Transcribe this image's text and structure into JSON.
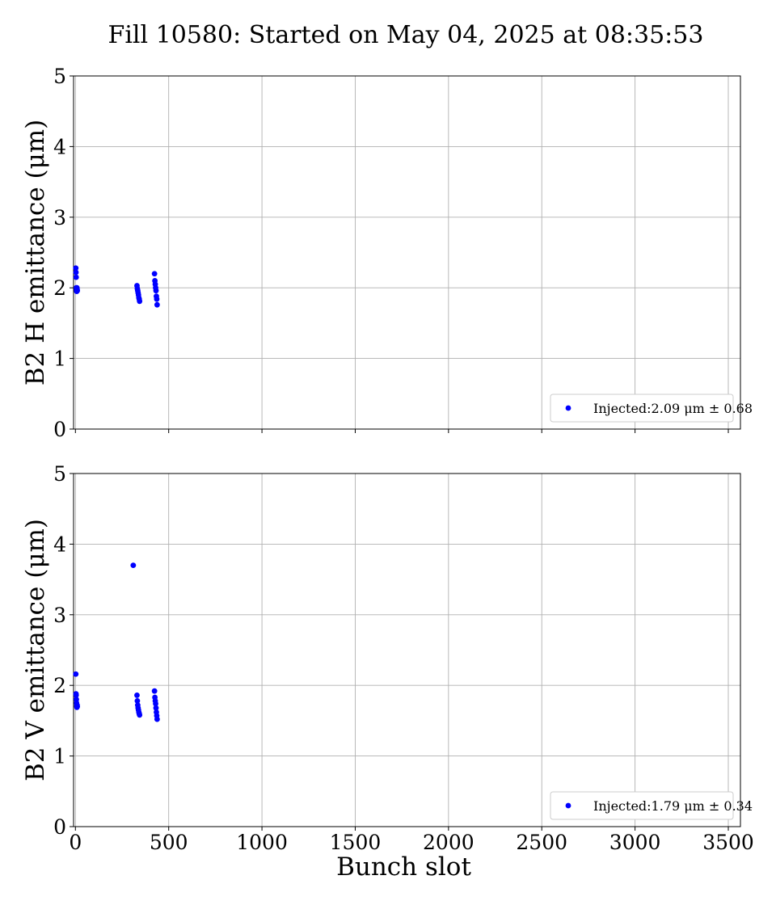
{
  "title": "Fill 10580: Started on May 04, 2025 at 08:35:53",
  "colors": {
    "marker": "#0000ff",
    "grid": "#b0b0b0",
    "legend_border": "#cccccc"
  },
  "chart_data": [
    {
      "type": "scatter",
      "ylabel": "B2 H emittance (μm)",
      "xlabel": "",
      "xlim": [
        -10,
        3565
      ],
      "ylim": [
        0,
        5
      ],
      "xticks": [
        0,
        500,
        1000,
        1500,
        2000,
        2500,
        3000,
        3500
      ],
      "yticks": [
        0,
        1,
        2,
        3,
        4,
        5
      ],
      "show_xtick_labels": false,
      "grid": true,
      "legend_position": "lower-right",
      "series": [
        {
          "name": "Injected:2.09 μm ± 0.68",
          "color": "#0000ff",
          "x": [
            2,
            3,
            4,
            5,
            6,
            7,
            8,
            9,
            10,
            330,
            332,
            334,
            336,
            338,
            340,
            342,
            344,
            424,
            426,
            428,
            430,
            432,
            434,
            436,
            438
          ],
          "y": [
            2.28,
            2.22,
            2.15,
            2.0,
            1.97,
            1.95,
            2.0,
            1.98,
            1.96,
            2.03,
            1.99,
            1.96,
            1.93,
            1.9,
            1.86,
            1.84,
            1.81,
            2.2,
            2.1,
            2.05,
            2.0,
            1.96,
            1.88,
            1.84,
            1.76
          ]
        }
      ]
    },
    {
      "type": "scatter",
      "ylabel": "B2 V emittance (μm)",
      "xlabel": "Bunch slot",
      "xlim": [
        -10,
        3565
      ],
      "ylim": [
        0,
        5
      ],
      "xticks": [
        0,
        500,
        1000,
        1500,
        2000,
        2500,
        3000,
        3500
      ],
      "yticks": [
        0,
        1,
        2,
        3,
        4,
        5
      ],
      "show_xtick_labels": true,
      "grid": true,
      "legend_position": "lower-right",
      "series": [
        {
          "name": "Injected:1.79 μm ± 0.34",
          "color": "#0000ff",
          "x": [
            2,
            3,
            4,
            5,
            6,
            7,
            8,
            9,
            10,
            310,
            330,
            332,
            334,
            336,
            338,
            340,
            342,
            344,
            424,
            426,
            428,
            430,
            432,
            434,
            436,
            438
          ],
          "y": [
            2.16,
            1.88,
            1.86,
            1.8,
            1.75,
            1.71,
            1.69,
            1.72,
            1.7,
            3.7,
            1.86,
            1.78,
            1.72,
            1.68,
            1.65,
            1.62,
            1.6,
            1.58,
            1.92,
            1.83,
            1.78,
            1.74,
            1.68,
            1.62,
            1.57,
            1.52
          ]
        }
      ]
    }
  ]
}
